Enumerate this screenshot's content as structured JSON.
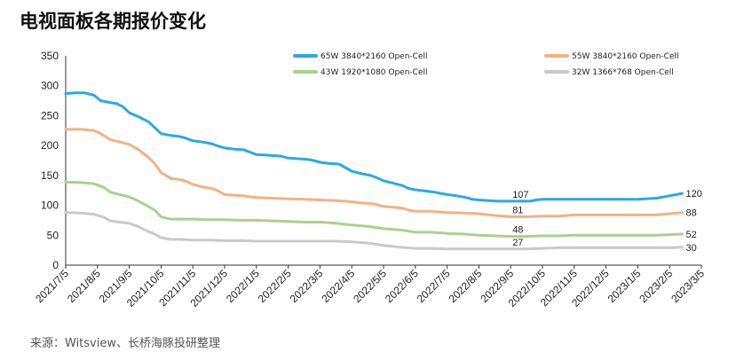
{
  "title": "电视面板各期报价变化",
  "source": "来源：Witsview、长桥海豚投研整理",
  "chart_data": {
    "type": "line",
    "title": "电视面板各期报价变化",
    "xlabel": "",
    "ylabel": "",
    "ylim": [
      0,
      350
    ],
    "yticks": [
      0,
      50,
      100,
      150,
      200,
      250,
      300,
      350
    ],
    "grid": false,
    "legend_position": "top",
    "x_ticks": [
      "2021/7/5",
      "2021/8/5",
      "2021/9/5",
      "2021/10/5",
      "2021/11/5",
      "2021/12/5",
      "2022/1/5",
      "2022/2/5",
      "2022/3/5",
      "2022/4/5",
      "2022/5/5",
      "2022/6/5",
      "2022/7/5",
      "2022/8/5",
      "2022/9/5",
      "2022/10/5",
      "2022/11/5",
      "2022/12/5",
      "2023/1/5",
      "2023/2/5",
      "2023/3/5"
    ],
    "series": [
      {
        "name": "65W 3840*2160 Open-Cell",
        "color": "#29ABE2",
        "stroke_width": 3,
        "end_label": "120",
        "points": [
          [
            0,
            287
          ],
          [
            0.3,
            288
          ],
          [
            0.6,
            288
          ],
          [
            0.9,
            284
          ],
          [
            1.1,
            275
          ],
          [
            1.4,
            272
          ],
          [
            1.6,
            270
          ],
          [
            1.8,
            265
          ],
          [
            2,
            255
          ],
          [
            2.3,
            248
          ],
          [
            2.6,
            240
          ],
          [
            2.8,
            230
          ],
          [
            3,
            220
          ],
          [
            3.3,
            217
          ],
          [
            3.6,
            215
          ],
          [
            3.8,
            212
          ],
          [
            4,
            208
          ],
          [
            4.3,
            206
          ],
          [
            4.6,
            203
          ],
          [
            4.8,
            199
          ],
          [
            5,
            196
          ],
          [
            5.3,
            194
          ],
          [
            5.6,
            193
          ],
          [
            5.8,
            189
          ],
          [
            6,
            185
          ],
          [
            6.3,
            184
          ],
          [
            6.6,
            183
          ],
          [
            6.8,
            182
          ],
          [
            7,
            179
          ],
          [
            7.3,
            178
          ],
          [
            7.6,
            177
          ],
          [
            7.8,
            175
          ],
          [
            8,
            172
          ],
          [
            8.3,
            170
          ],
          [
            8.6,
            169
          ],
          [
            8.8,
            163
          ],
          [
            9,
            157
          ],
          [
            9.3,
            153
          ],
          [
            9.6,
            150
          ],
          [
            9.8,
            146
          ],
          [
            10,
            141
          ],
          [
            10.3,
            137
          ],
          [
            10.6,
            133
          ],
          [
            10.8,
            128
          ],
          [
            11,
            126
          ],
          [
            11.3,
            124
          ],
          [
            11.6,
            122
          ],
          [
            11.8,
            120
          ],
          [
            12,
            118
          ],
          [
            12.3,
            116
          ],
          [
            12.6,
            113
          ],
          [
            12.8,
            110
          ],
          [
            13,
            109
          ],
          [
            13.3,
            108
          ],
          [
            13.6,
            107
          ],
          [
            13.8,
            107
          ],
          [
            14,
            107
          ],
          [
            14.3,
            107
          ],
          [
            14.6,
            107
          ],
          [
            14.8,
            109
          ],
          [
            15,
            110
          ],
          [
            16,
            110
          ],
          [
            17,
            110
          ],
          [
            17.6,
            110
          ],
          [
            18,
            110
          ],
          [
            18.6,
            112
          ],
          [
            19,
            116
          ],
          [
            19.4,
            120
          ]
        ]
      },
      {
        "name": "55W 3840*2160 Open-Cell",
        "color": "#F4B183",
        "stroke_width": 3,
        "end_label": "88",
        "points": [
          [
            0,
            227
          ],
          [
            0.5,
            227
          ],
          [
            0.9,
            225
          ],
          [
            1.1,
            220
          ],
          [
            1.4,
            210
          ],
          [
            1.7,
            206
          ],
          [
            2,
            202
          ],
          [
            2.3,
            193
          ],
          [
            2.6,
            180
          ],
          [
            2.8,
            170
          ],
          [
            3,
            155
          ],
          [
            3.3,
            145
          ],
          [
            3.6,
            143
          ],
          [
            3.8,
            140
          ],
          [
            4,
            135
          ],
          [
            4.3,
            131
          ],
          [
            4.6,
            128
          ],
          [
            4.8,
            124
          ],
          [
            5,
            118
          ],
          [
            5.3,
            117
          ],
          [
            5.6,
            116
          ],
          [
            5.8,
            114
          ],
          [
            6,
            113
          ],
          [
            6.5,
            112
          ],
          [
            7,
            111
          ],
          [
            7.5,
            110
          ],
          [
            8,
            109
          ],
          [
            8.5,
            108
          ],
          [
            9,
            106
          ],
          [
            9.3,
            104
          ],
          [
            9.6,
            103
          ],
          [
            9.8,
            101
          ],
          [
            10,
            98
          ],
          [
            10.3,
            97
          ],
          [
            10.6,
            95
          ],
          [
            10.8,
            92
          ],
          [
            11,
            90
          ],
          [
            11.5,
            90
          ],
          [
            12,
            88
          ],
          [
            12.5,
            87
          ],
          [
            13,
            86
          ],
          [
            13.5,
            83
          ],
          [
            14,
            81
          ],
          [
            14.5,
            81
          ],
          [
            15,
            82
          ],
          [
            15.5,
            82
          ],
          [
            16,
            84
          ],
          [
            17,
            84
          ],
          [
            18,
            84
          ],
          [
            18.6,
            84
          ],
          [
            19,
            86
          ],
          [
            19.4,
            88
          ]
        ]
      },
      {
        "name": "43W 1920*1080 Open-Cell",
        "color": "#A9D18E",
        "stroke_width": 3,
        "end_label": "52",
        "points": [
          [
            0,
            139
          ],
          [
            0.5,
            138
          ],
          [
            0.9,
            136
          ],
          [
            1.2,
            130
          ],
          [
            1.4,
            122
          ],
          [
            1.7,
            118
          ],
          [
            2,
            114
          ],
          [
            2.3,
            107
          ],
          [
            2.6,
            98
          ],
          [
            2.8,
            92
          ],
          [
            3,
            81
          ],
          [
            3.3,
            77
          ],
          [
            3.6,
            77
          ],
          [
            4,
            77
          ],
          [
            4.5,
            76
          ],
          [
            5,
            76
          ],
          [
            5.5,
            75
          ],
          [
            6,
            75
          ],
          [
            6.5,
            74
          ],
          [
            7,
            73
          ],
          [
            7.5,
            72
          ],
          [
            8,
            72
          ],
          [
            8.5,
            70
          ],
          [
            9,
            67
          ],
          [
            9.5,
            65
          ],
          [
            10,
            61
          ],
          [
            10.5,
            59
          ],
          [
            11,
            55
          ],
          [
            11.5,
            55
          ],
          [
            12,
            53
          ],
          [
            12.5,
            52
          ],
          [
            13,
            50
          ],
          [
            13.5,
            49
          ],
          [
            14,
            48
          ],
          [
            14.5,
            48
          ],
          [
            15,
            49
          ],
          [
            15.5,
            49
          ],
          [
            16,
            50
          ],
          [
            17,
            50
          ],
          [
            18,
            50
          ],
          [
            18.6,
            50
          ],
          [
            19,
            51
          ],
          [
            19.4,
            52
          ]
        ]
      },
      {
        "name": "32W 1366*768 Open-Cell",
        "color": "#C9C9C9",
        "stroke_width": 3,
        "end_label": "30",
        "points": [
          [
            0,
            88
          ],
          [
            0.5,
            87
          ],
          [
            0.9,
            85
          ],
          [
            1.2,
            80
          ],
          [
            1.4,
            74
          ],
          [
            1.7,
            72
          ],
          [
            2,
            70
          ],
          [
            2.3,
            64
          ],
          [
            2.6,
            56
          ],
          [
            2.8,
            52
          ],
          [
            3,
            46
          ],
          [
            3.3,
            43
          ],
          [
            3.6,
            43
          ],
          [
            4,
            42
          ],
          [
            4.5,
            42
          ],
          [
            5,
            41
          ],
          [
            5.5,
            41
          ],
          [
            6,
            40
          ],
          [
            6.5,
            40
          ],
          [
            7,
            40
          ],
          [
            7.5,
            40
          ],
          [
            8,
            40
          ],
          [
            8.5,
            40
          ],
          [
            9,
            39
          ],
          [
            9.5,
            37
          ],
          [
            10,
            33
          ],
          [
            10.5,
            30
          ],
          [
            11,
            28
          ],
          [
            11.5,
            28
          ],
          [
            12,
            27
          ],
          [
            12.5,
            27
          ],
          [
            13,
            27
          ],
          [
            13.5,
            27
          ],
          [
            14,
            27
          ],
          [
            14.5,
            27
          ],
          [
            15,
            28
          ],
          [
            15.5,
            29
          ],
          [
            16,
            29
          ],
          [
            17,
            29
          ],
          [
            18,
            29
          ],
          [
            18.6,
            29
          ],
          [
            19,
            29
          ],
          [
            19.4,
            30
          ]
        ]
      }
    ]
  }
}
